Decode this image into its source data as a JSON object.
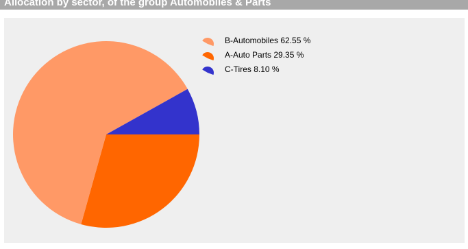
{
  "header": {
    "title": "Allocation by sector, of the group Automobiles & Parts"
  },
  "colors": {
    "header_bg": "#a8a8a8",
    "panel_bg": "#efefef"
  },
  "chart_data": {
    "type": "pie",
    "title": "Allocation by sector, of the group Automobiles & Parts",
    "slices": [
      {
        "label": "B-Automobiles",
        "value": 62.55,
        "display": "62.55 %",
        "color": "#ff9966"
      },
      {
        "label": "A-Auto Parts",
        "value": 29.35,
        "display": "29.35 %",
        "color": "#ff6600"
      },
      {
        "label": "C-Tires",
        "value": 8.1,
        "display": "8.10 %",
        "color": "#3333cc"
      }
    ],
    "legend_position": "top-right"
  }
}
